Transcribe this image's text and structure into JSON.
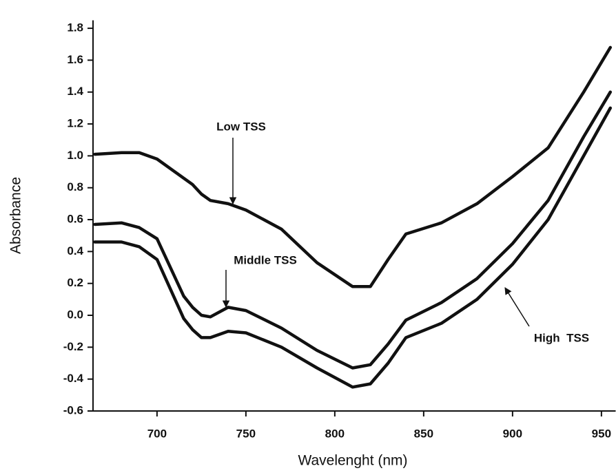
{
  "chart_data": {
    "type": "line",
    "x_label": "Wavelenght (nm)",
    "y_label": "Absorbance",
    "x": [
      665,
      680,
      690,
      700,
      715,
      720,
      725,
      730,
      740,
      750,
      770,
      790,
      810,
      820,
      830,
      840,
      860,
      880,
      900,
      920,
      940,
      955
    ],
    "series": [
      {
        "name": "Low TSS",
        "color": "#111111",
        "values": [
          1.01,
          1.02,
          1.02,
          0.98,
          0.86,
          0.82,
          0.76,
          0.72,
          0.7,
          0.66,
          0.54,
          0.33,
          0.18,
          0.18,
          0.35,
          0.51,
          0.58,
          0.7,
          0.87,
          1.05,
          1.4,
          1.68
        ]
      },
      {
        "name": "Middle TSS",
        "color": "#111111",
        "values": [
          0.57,
          0.58,
          0.55,
          0.48,
          0.12,
          0.05,
          0.0,
          -0.01,
          0.05,
          0.03,
          -0.08,
          -0.22,
          -0.33,
          -0.31,
          -0.18,
          -0.03,
          0.08,
          0.23,
          0.45,
          0.72,
          1.12,
          1.4
        ]
      },
      {
        "name": "High  TSS",
        "color": "#111111",
        "values": [
          0.46,
          0.46,
          0.43,
          0.35,
          -0.02,
          -0.09,
          -0.14,
          -0.14,
          -0.1,
          -0.11,
          -0.2,
          -0.33,
          -0.45,
          -0.43,
          -0.3,
          -0.14,
          -0.05,
          0.1,
          0.32,
          0.6,
          1.0,
          1.3
        ]
      }
    ],
    "xlim": [
      664,
      958
    ],
    "xticks": [
      700,
      750,
      800,
      850,
      900,
      950
    ],
    "ylim": [
      -0.6,
      1.85
    ],
    "yticks": [
      -0.6,
      -0.4,
      -0.2,
      {
        "value": 0,
        "label": "0.0"
      },
      0.2,
      0.4,
      0.6,
      0.8,
      {
        "value": 1,
        "label": "1.0"
      },
      1.2,
      1.4,
      1.6,
      1.8
    ],
    "grid": false
  }
}
